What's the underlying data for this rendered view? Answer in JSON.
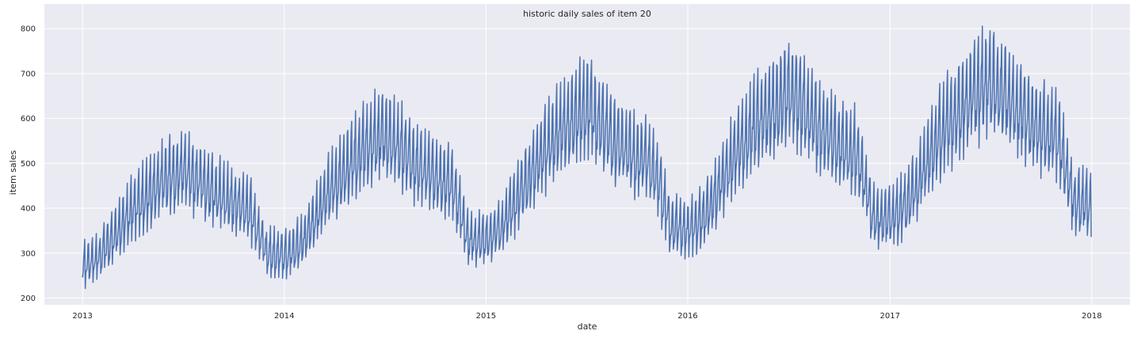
{
  "chart_data": {
    "type": "line",
    "title": "historic daily sales of item 20",
    "xlabel": "date",
    "ylabel": "item sales",
    "xlim": [
      "2012-10-24",
      "2018-03-11"
    ],
    "ylim": [
      185,
      855
    ],
    "x_ticks": [
      "2013",
      "2014",
      "2015",
      "2016",
      "2017",
      "2018"
    ],
    "y_ticks": [
      200,
      300,
      400,
      500,
      600,
      700,
      800
    ],
    "grid": true,
    "series": [
      {
        "frequency": "daily",
        "start": "2013-01-01",
        "end": "2017-12-31",
        "color": "#4c72b0",
        "approx_monthly_level": {
          "months": [
            "2013-01",
            "2013-02",
            "2013-03",
            "2013-04",
            "2013-05",
            "2013-06",
            "2013-07",
            "2013-08",
            "2013-09",
            "2013-10",
            "2013-11",
            "2013-12",
            "2014-01",
            "2014-02",
            "2014-03",
            "2014-04",
            "2014-05",
            "2014-06",
            "2014-07",
            "2014-08",
            "2014-09",
            "2014-10",
            "2014-11",
            "2014-12",
            "2015-01",
            "2015-02",
            "2015-03",
            "2015-04",
            "2015-05",
            "2015-06",
            "2015-07",
            "2015-08",
            "2015-09",
            "2015-10",
            "2015-11",
            "2015-12",
            "2016-01",
            "2016-02",
            "2016-03",
            "2016-04",
            "2016-05",
            "2016-06",
            "2016-07",
            "2016-08",
            "2016-09",
            "2016-10",
            "2016-11",
            "2016-12",
            "2017-01",
            "2017-02",
            "2017-03",
            "2017-04",
            "2017-05",
            "2017-06",
            "2017-07",
            "2017-08",
            "2017-09",
            "2017-10",
            "2017-11",
            "2017-12"
          ],
          "values": [
            270,
            290,
            345,
            395,
            430,
            465,
            480,
            460,
            430,
            410,
            390,
            300,
            295,
            320,
            390,
            450,
            500,
            540,
            570,
            530,
            490,
            465,
            450,
            330,
            330,
            360,
            430,
            490,
            550,
            585,
            625,
            580,
            540,
            515,
            490,
            360,
            350,
            380,
            455,
            525,
            580,
            615,
            660,
            620,
            570,
            540,
            525,
            385,
            375,
            410,
            480,
            560,
            610,
            650,
            680,
            650,
            605,
            570,
            555,
            410
          ]
        },
        "weekly_amplitude": 0.16,
        "visible_max": 827,
        "visible_min": 220
      }
    ]
  }
}
